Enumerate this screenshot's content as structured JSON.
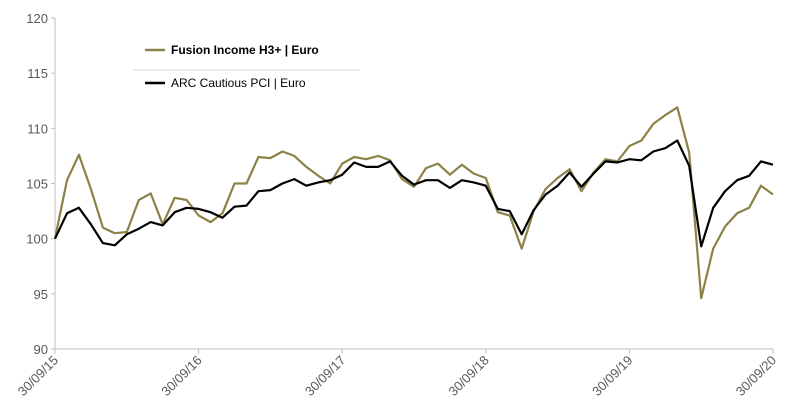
{
  "chart_data": {
    "type": "line",
    "categories": [
      "30/09/15",
      null,
      null,
      null,
      null,
      null,
      null,
      null,
      null,
      null,
      null,
      null,
      "30/09/16",
      null,
      null,
      null,
      null,
      null,
      null,
      null,
      null,
      null,
      null,
      null,
      "30/09/17",
      null,
      null,
      null,
      null,
      null,
      null,
      null,
      null,
      null,
      null,
      null,
      "30/09/18",
      null,
      null,
      null,
      null,
      null,
      null,
      null,
      null,
      null,
      null,
      null,
      "30/09/19",
      null,
      null,
      null,
      null,
      null,
      null,
      null,
      null,
      null,
      null,
      null,
      "30/09/20"
    ],
    "series": [
      {
        "name": "Fusion Income H3+ | Euro",
        "color": "#8c8248",
        "values": [
          100,
          105.3,
          107.6,
          104.5,
          101,
          100.5,
          100.6,
          103.5,
          104.1,
          101.3,
          103.7,
          103.5,
          102.1,
          101.5,
          102.3,
          105,
          105,
          107.4,
          107.3,
          107.9,
          107.5,
          106.5,
          105.7,
          105,
          106.8,
          107.4,
          107.2,
          107.5,
          107.1,
          105.4,
          104.7,
          106.4,
          106.8,
          105.8,
          106.7,
          105.9,
          105.5,
          102.4,
          102.1,
          99.1,
          102.5,
          104.5,
          105.5,
          106.3,
          104.3,
          106,
          107.2,
          107,
          108.4,
          108.9,
          110.4,
          111.2,
          111.9,
          107.8,
          94.6,
          99.1,
          101.1,
          102.3,
          102.8,
          104.8,
          104
        ]
      },
      {
        "name": "ARC Cautious PCI | Euro",
        "color": "#000000",
        "values": [
          100,
          102.3,
          102.8,
          101.3,
          99.6,
          99.4,
          100.4,
          100.9,
          101.5,
          101.2,
          102.4,
          102.8,
          102.7,
          102.4,
          101.9,
          102.9,
          103,
          104.3,
          104.4,
          105,
          105.4,
          104.8,
          105.1,
          105.3,
          105.8,
          106.9,
          106.5,
          106.5,
          107,
          105.7,
          104.9,
          105.3,
          105.3,
          104.6,
          105.3,
          105.1,
          104.8,
          102.7,
          102.5,
          100.4,
          102.6,
          104,
          104.8,
          106,
          104.7,
          105.9,
          107,
          106.9,
          107.2,
          107.1,
          107.9,
          108.2,
          108.9,
          106.6,
          99.3,
          102.8,
          104.3,
          105.3,
          105.7,
          107,
          106.7
        ]
      }
    ],
    "ylim": [
      90,
      120
    ],
    "yticks": [
      90,
      95,
      100,
      105,
      110,
      115,
      120
    ]
  }
}
